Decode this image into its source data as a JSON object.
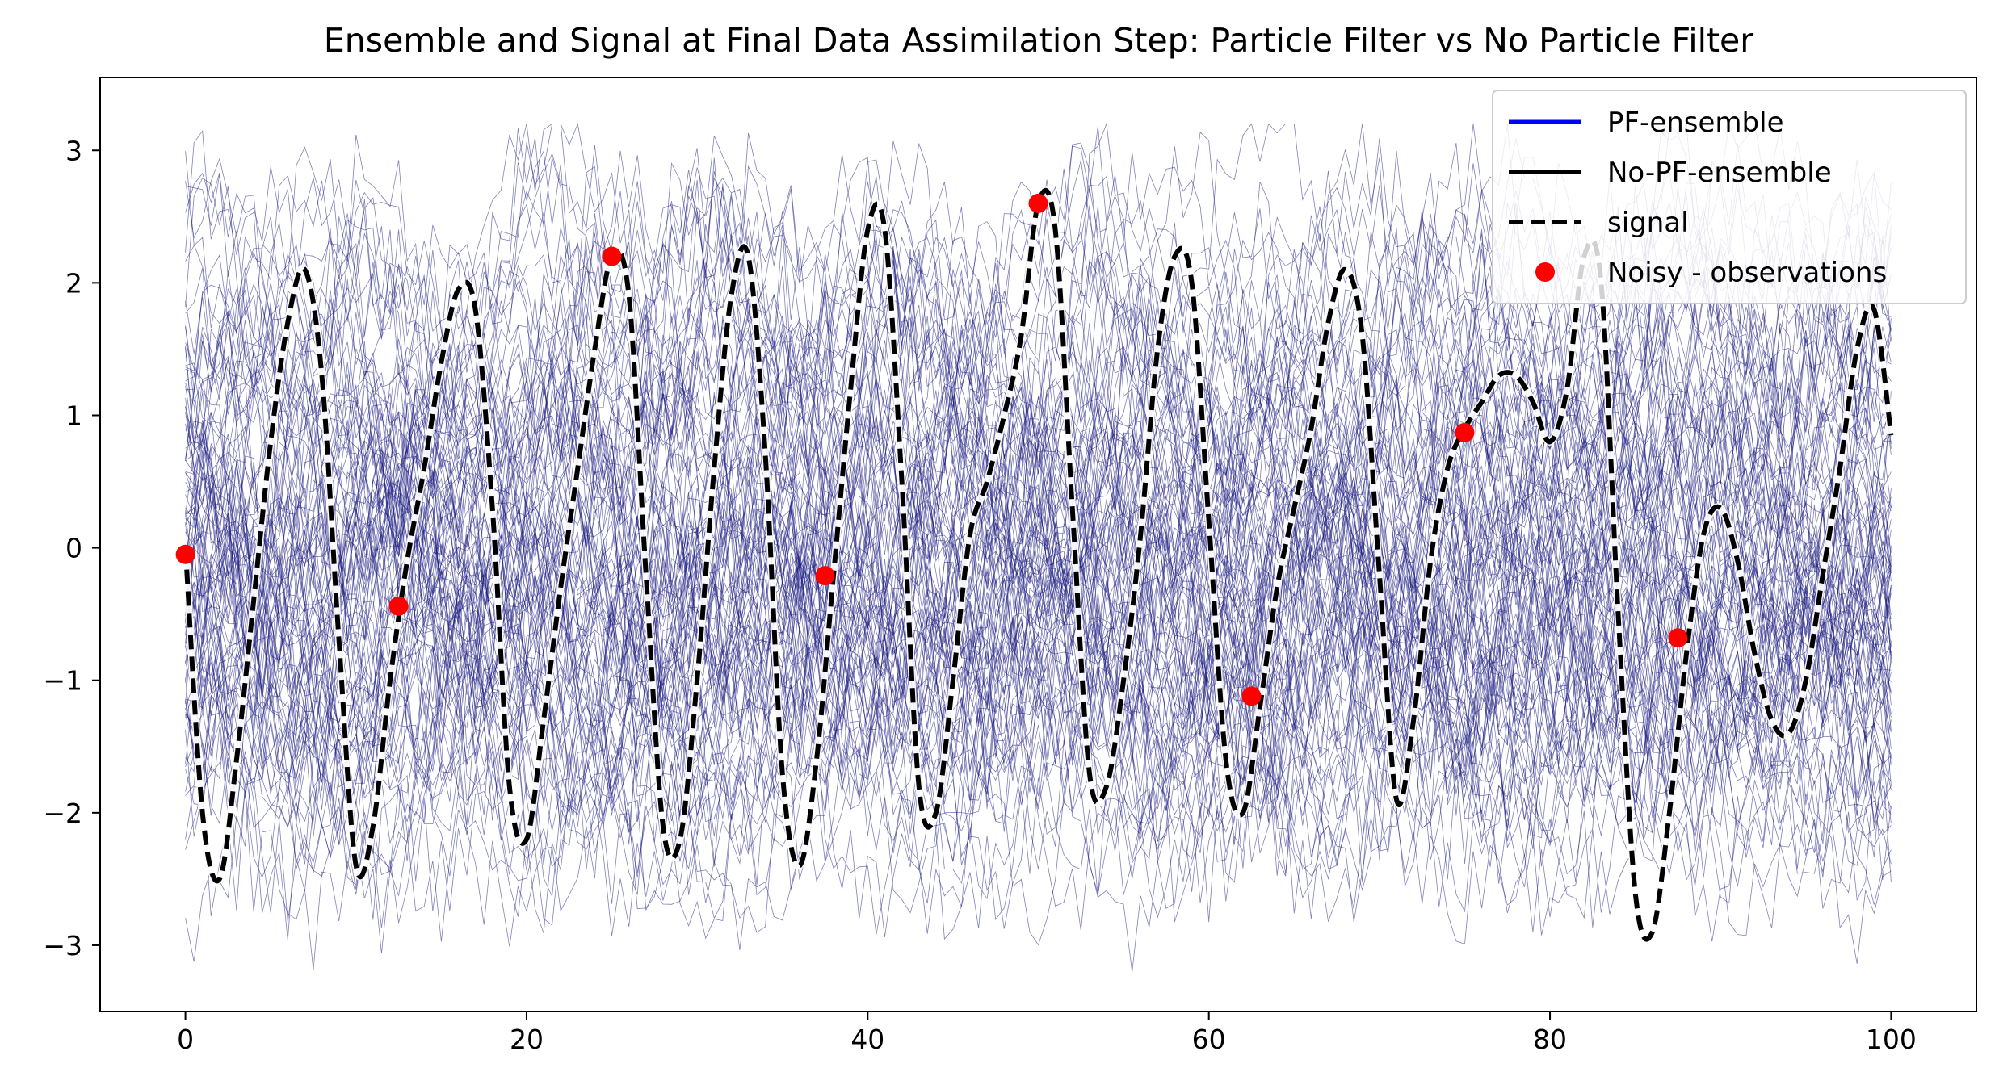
{
  "chart_data": {
    "type": "line",
    "title": "Ensemble and Signal at Final Data Assimilation Step: Particle Filter vs No Particle Filter",
    "xlabel": "",
    "ylabel": "",
    "xlim": [
      -5,
      105
    ],
    "ylim": [
      -3.5,
      3.55
    ],
    "x_ticks": [
      0,
      20,
      40,
      60,
      80,
      100
    ],
    "y_ticks": [
      -3,
      -2,
      -1,
      0,
      1,
      2,
      3
    ],
    "y_tick_labels": [
      "−3",
      "−2",
      "−1",
      "0",
      "1",
      "2",
      "3"
    ],
    "grid": false,
    "legend_position": "top-right",
    "legend": [
      {
        "label": "PF-ensemble",
        "style": "line",
        "color": "#0000ff"
      },
      {
        "label": "No-PF-ensemble",
        "style": "line",
        "color": "#000000"
      },
      {
        "label": "signal",
        "style": "dashed",
        "color": "#000000"
      },
      {
        "label": "Noisy - observations",
        "style": "marker",
        "color": "#ff0000"
      }
    ],
    "colors": {
      "ensemble": "#1a1a80",
      "signal": "#000000",
      "observations": "#ff0000"
    },
    "ensemble": {
      "members": 100,
      "x_range": [
        0,
        100
      ],
      "y_range": [
        -3.2,
        3.2
      ]
    },
    "signal": {
      "x": [
        0,
        1,
        2,
        3,
        4,
        5,
        6,
        7,
        8,
        9,
        10,
        11,
        12,
        13,
        14,
        15,
        16,
        17,
        18,
        19,
        20,
        21,
        22,
        23,
        24,
        25,
        26,
        27,
        28,
        29,
        30,
        31,
        32,
        33,
        34,
        35,
        36,
        37,
        38,
        39,
        40,
        41,
        42,
        43,
        44,
        45,
        46,
        47,
        48,
        49,
        50,
        51,
        52,
        53,
        54,
        55,
        56,
        57,
        58,
        59,
        60,
        61,
        62,
        63,
        64,
        65,
        66,
        67,
        68,
        69,
        70,
        71,
        72,
        73,
        74,
        75,
        76,
        77,
        78,
        79,
        80,
        81,
        82,
        83,
        84,
        85,
        86,
        87,
        88,
        89,
        90,
        91,
        92,
        93,
        94,
        95,
        96,
        97,
        98,
        99,
        100
      ],
      "y": [
        0,
        -2.0,
        -2.5,
        -1.6,
        -0.4,
        0.8,
        1.7,
        2.1,
        1.3,
        -0.7,
        -2.4,
        -2.1,
        -1.0,
        -0.1,
        0.6,
        1.4,
        1.95,
        1.8,
        0.3,
        -1.8,
        -2.2,
        -1.3,
        -0.3,
        0.6,
        1.5,
        2.2,
        1.9,
        -0.2,
        -2.1,
        -2.2,
        -1.0,
        0.6,
        1.9,
        2.2,
        0.7,
        -1.7,
        -2.4,
        -1.6,
        -0.2,
        1.2,
        2.4,
        2.4,
        0.5,
        -1.8,
        -2.0,
        -1.0,
        0.1,
        0.5,
        1.0,
        1.6,
        2.6,
        2.4,
        0.3,
        -1.7,
        -1.8,
        -1.0,
        0.1,
        1.5,
        2.2,
        2.0,
        0.2,
        -1.6,
        -2.0,
        -1.2,
        -0.3,
        0.3,
        0.9,
        1.7,
        2.1,
        1.6,
        -0.2,
        -1.9,
        -1.3,
        -0.1,
        0.6,
        0.9,
        1.1,
        1.3,
        1.3,
        1.1,
        0.8,
        1.2,
        2.2,
        2.0,
        -0.5,
        -2.6,
        -2.9,
        -2.0,
        -0.8,
        0.1,
        0.3,
        -0.1,
        -0.8,
        -1.3,
        -1.4,
        -1.0,
        -0.2,
        0.6,
        1.5,
        1.8,
        0.85
      ]
    },
    "observations": {
      "x": [
        0,
        12.5,
        25,
        37.5,
        50,
        62.5,
        75,
        87.5
      ],
      "y": [
        -0.05,
        -0.44,
        2.2,
        -0.21,
        2.6,
        -1.12,
        0.87,
        -0.68
      ]
    }
  }
}
